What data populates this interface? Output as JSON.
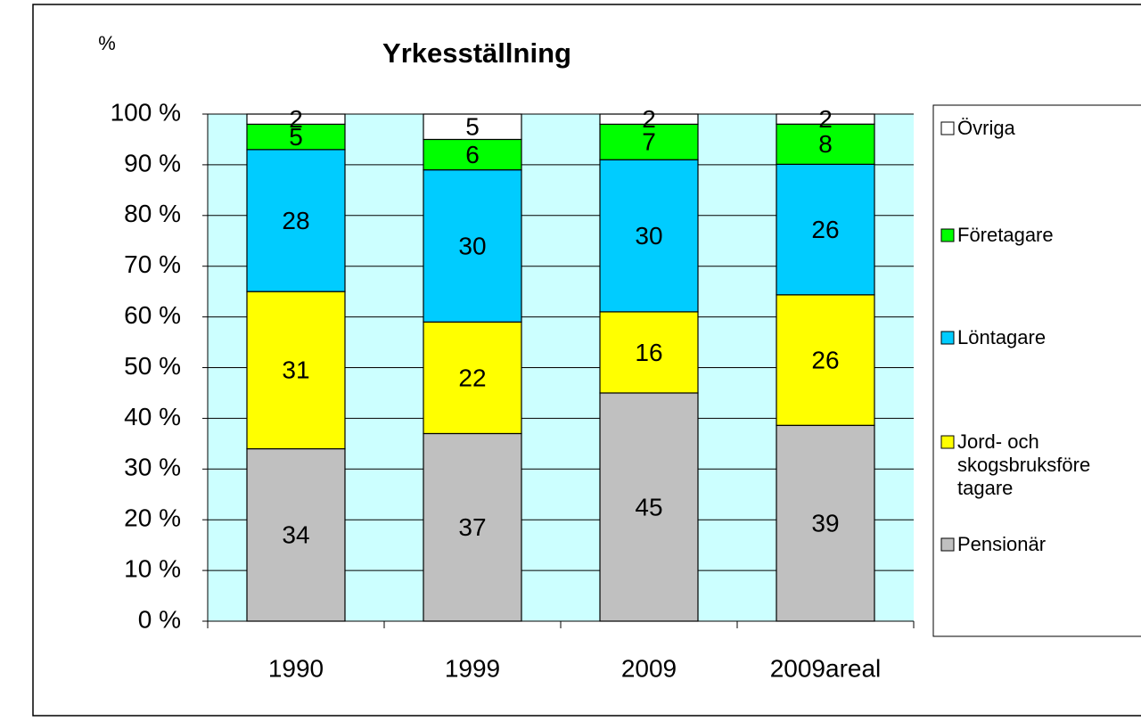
{
  "chart_data": {
    "type": "bar",
    "stacked": "percent",
    "title": "Yrkesställning",
    "y_label": "%",
    "categories": [
      "1990",
      "1999",
      "2009",
      "2009areal"
    ],
    "series": [
      {
        "name": "Pensionär",
        "color": "#c0c0c0",
        "values": [
          34,
          37,
          45,
          39
        ]
      },
      {
        "name": "Jord- och skogsbruksföretagare",
        "color": "#ffff00",
        "values": [
          31,
          22,
          16,
          26
        ]
      },
      {
        "name": "Löntagare",
        "color": "#00ccff",
        "values": [
          28,
          30,
          30,
          26
        ]
      },
      {
        "name": "Företagare",
        "color": "#00ff00",
        "values": [
          5,
          6,
          7,
          8
        ]
      },
      {
        "name": "Övriga",
        "color": "#ffffff",
        "values": [
          2,
          5,
          2,
          2
        ]
      }
    ],
    "ylim": [
      0,
      100
    ],
    "yticks": [
      {
        "value": 0,
        "label": "0 %"
      },
      {
        "value": 10,
        "label": "10 %"
      },
      {
        "value": 20,
        "label": "20 %"
      },
      {
        "value": 30,
        "label": "30 %"
      },
      {
        "value": 40,
        "label": "40 %"
      },
      {
        "value": 50,
        "label": "50 %"
      },
      {
        "value": 60,
        "label": "60 %"
      },
      {
        "value": 70,
        "label": "70 %"
      },
      {
        "value": 80,
        "label": "80 %"
      },
      {
        "value": 90,
        "label": "90 %"
      },
      {
        "value": 100,
        "label": "100 %"
      }
    ],
    "grid": true,
    "plot_background": "#ccffff",
    "legend": "right"
  }
}
